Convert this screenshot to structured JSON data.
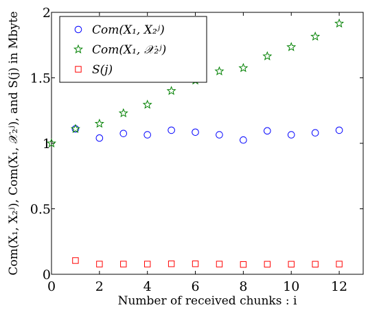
{
  "chart_data": {
    "type": "scatter",
    "xlabel": "Number of received chunks : i",
    "ylabel": "Com(X₁, X₂ʲ), Com(X₁, 𝒳₂ʲ), and S(j) in Mbyte",
    "xlim": [
      0,
      13
    ],
    "ylim": [
      0,
      2
    ],
    "xticks": [
      0,
      2,
      4,
      6,
      8,
      10,
      12
    ],
    "yticks": [
      0,
      0.5,
      1,
      1.5,
      2
    ],
    "ytick_labels": [
      "0",
      "0.5",
      "1",
      "1.5",
      "2"
    ],
    "grid": false,
    "legend_position": "top-left",
    "series": [
      {
        "name": "Com(X₁, X₂ʲ)",
        "marker": "circle",
        "color": "#0000ff",
        "x": [
          1,
          2,
          3,
          4,
          5,
          6,
          7,
          8,
          9,
          10,
          11,
          12
        ],
        "y": [
          1.11,
          1.04,
          1.075,
          1.065,
          1.1,
          1.085,
          1.065,
          1.025,
          1.095,
          1.065,
          1.08,
          1.1
        ]
      },
      {
        "name": "Com(X₁, 𝒳₂ʲ)",
        "marker": "star",
        "color": "#008000",
        "x": [
          0,
          1,
          2,
          3,
          4,
          5,
          6,
          7,
          8,
          9,
          10,
          11,
          12
        ],
        "y": [
          1.0,
          1.11,
          1.15,
          1.23,
          1.295,
          1.4,
          1.48,
          1.55,
          1.575,
          1.665,
          1.735,
          1.815,
          1.915
        ]
      },
      {
        "name": "S(j)",
        "marker": "square",
        "color": "#ff0000",
        "x": [
          1,
          2,
          3,
          4,
          5,
          6,
          7,
          8,
          9,
          10,
          11,
          12
        ],
        "y": [
          0.105,
          0.078,
          0.078,
          0.078,
          0.08,
          0.08,
          0.078,
          0.075,
          0.077,
          0.077,
          0.077,
          0.078
        ]
      }
    ]
  }
}
